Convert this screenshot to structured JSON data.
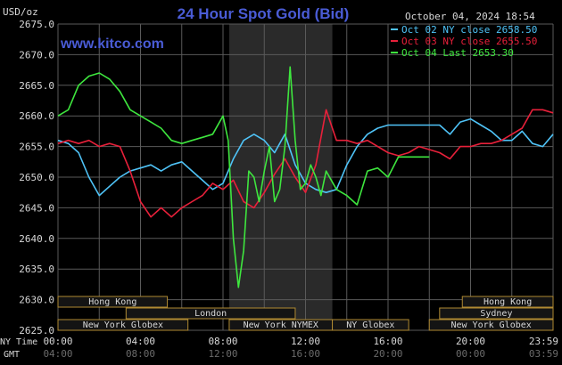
{
  "header": {
    "title": "24 Hour Spot Gold (Bid)",
    "unit": "USD/oz",
    "timestamp": "October 04, 2024 18:54",
    "watermark": "www.kitco.com"
  },
  "colors": {
    "background": "#000000",
    "grid": "#5a5a5a",
    "title": "#4a5cd6",
    "text": "#d8d8d8",
    "series_blue": "#4fc3f7",
    "series_red": "#e8203a",
    "series_green": "#3ee63e",
    "market_bar_fill": "#141414",
    "market_bar_border": "#b08a32",
    "nymex_shade": "#2a2a2a"
  },
  "chart_data": {
    "type": "line",
    "title": "24 Hour Spot Gold (Bid)",
    "ylabel": "USD/oz",
    "ylim": [
      2625.0,
      2675.0
    ],
    "y_ticks": [
      "2675.0",
      "2670.0",
      "2665.0",
      "2660.0",
      "2655.0",
      "2650.0",
      "2645.0",
      "2640.0",
      "2635.0",
      "2630.0",
      "2625.0"
    ],
    "xlim": [
      0,
      24
    ],
    "x_ticks_ny": [
      "00:00",
      "04:00",
      "08:00",
      "12:00",
      "16:00",
      "20:00",
      "23:59"
    ],
    "x_ticks_gmt": [
      "04:00",
      "08:00",
      "12:00",
      "16:00",
      "20:00",
      "00:00",
      "03:59"
    ],
    "x_axis_labels": {
      "ny": "NY Time",
      "gmt": "GMT"
    },
    "grid": true,
    "legend_position": "top-right",
    "series": [
      {
        "name": "Oct 02 NY close",
        "last_value": "2658.50",
        "color": "#4fc3f7",
        "x": [
          0,
          0.5,
          1,
          1.5,
          2,
          2.5,
          3,
          3.5,
          4,
          4.5,
          5,
          5.5,
          6,
          6.5,
          7,
          7.5,
          8,
          8.5,
          9,
          9.5,
          10,
          10.5,
          11,
          11.5,
          12,
          12.5,
          13,
          13.5,
          14,
          14.5,
          15,
          15.5,
          16,
          16.5,
          17,
          17.5,
          18,
          18.5,
          19,
          19.5,
          20,
          20.5,
          21,
          21.5,
          22,
          22.5,
          23,
          23.5,
          24
        ],
        "values": [
          2656,
          2655.5,
          2654,
          2650,
          2647,
          2648.5,
          2650,
          2651,
          2651.5,
          2652,
          2651,
          2652,
          2652.5,
          2651,
          2649.5,
          2648,
          2649,
          2653,
          2656,
          2657,
          2656,
          2654,
          2657,
          2652,
          2649,
          2648,
          2647.5,
          2648,
          2652,
          2655,
          2657,
          2658,
          2658.5,
          2658.5,
          2658.5,
          2658.5,
          2658.5,
          2658.5,
          2657,
          2659,
          2659.5,
          2658.5,
          2657.5,
          2656,
          2656,
          2657.5,
          2655.5,
          2655,
          2657
        ]
      },
      {
        "name": "Oct 03 NY close",
        "last_value": "2655.50",
        "color": "#e8203a",
        "x": [
          0,
          0.5,
          1,
          1.5,
          2,
          2.5,
          3,
          3.5,
          4,
          4.5,
          5,
          5.5,
          6,
          6.5,
          7,
          7.5,
          8,
          8.5,
          9,
          9.5,
          10,
          10.5,
          11,
          11.5,
          12,
          12.5,
          13,
          13.5,
          14,
          14.5,
          15,
          15.5,
          16,
          16.5,
          17,
          17.5,
          18,
          18.5,
          19,
          19.5,
          20,
          20.5,
          21,
          21.5,
          22,
          22.5,
          23,
          23.5,
          24
        ],
        "values": [
          2655.5,
          2656,
          2655.5,
          2656,
          2655,
          2655.5,
          2655,
          2651,
          2646,
          2643.5,
          2645,
          2643.5,
          2645,
          2646,
          2647,
          2649,
          2648,
          2649.5,
          2646,
          2645,
          2647.5,
          2650.5,
          2653,
          2650,
          2647.5,
          2652,
          2661,
          2656,
          2656,
          2655.5,
          2656,
          2655,
          2654,
          2653.5,
          2654,
          2655,
          2654.5,
          2654,
          2653,
          2655,
          2655,
          2655.5,
          2655.5,
          2656,
          2657,
          2658,
          2661,
          2661,
          2660.5
        ]
      },
      {
        "name": "Oct 04 Last",
        "last_value": "2653.30",
        "color": "#3ee63e",
        "x": [
          0,
          0.5,
          1,
          1.5,
          2,
          2.5,
          3,
          3.5,
          4,
          4.5,
          5,
          5.5,
          6,
          6.5,
          7,
          7.5,
          8,
          8.25,
          8.5,
          8.75,
          9,
          9.25,
          9.5,
          9.75,
          10,
          10.25,
          10.5,
          10.75,
          11,
          11.25,
          11.5,
          11.75,
          12,
          12.25,
          12.5,
          12.75,
          13,
          13.5,
          14,
          14.5,
          15,
          15.5,
          16,
          16.5,
          17,
          17.5,
          18
        ],
        "values": [
          2660,
          2661,
          2665,
          2666.5,
          2667,
          2666,
          2664,
          2661,
          2660,
          2659,
          2658,
          2656,
          2655.5,
          2656,
          2656.5,
          2657,
          2660,
          2656,
          2640,
          2632,
          2638,
          2651,
          2650,
          2646,
          2651,
          2655,
          2646,
          2648,
          2655,
          2668,
          2656,
          2648,
          2649,
          2652,
          2650,
          2647,
          2651,
          2648,
          2647,
          2645.5,
          2651,
          2651.5,
          2650,
          2653.3,
          2653.3,
          2653.3,
          2653.3
        ]
      }
    ]
  },
  "market_sessions": {
    "row1": [
      {
        "label": "Hong Kong",
        "start": 0,
        "end": 5.3
      },
      {
        "label": "Hong Kong",
        "start": 19.6,
        "end": 24
      }
    ],
    "row2": [
      {
        "label": "London",
        "start": 3.3,
        "end": 11.5
      },
      {
        "label": "Sydney",
        "start": 18.5,
        "end": 24
      }
    ],
    "row3": [
      {
        "label": "New York Globex",
        "start": 0,
        "end": 6.3
      },
      {
        "label": "New York NYMEX",
        "start": 8.3,
        "end": 13.3
      },
      {
        "label": "NY Globex",
        "start": 13.3,
        "end": 17
      },
      {
        "label": "New York Globex",
        "start": 18,
        "end": 24
      }
    ]
  },
  "nymex_window": {
    "start": 8.3,
    "end": 13.3
  }
}
